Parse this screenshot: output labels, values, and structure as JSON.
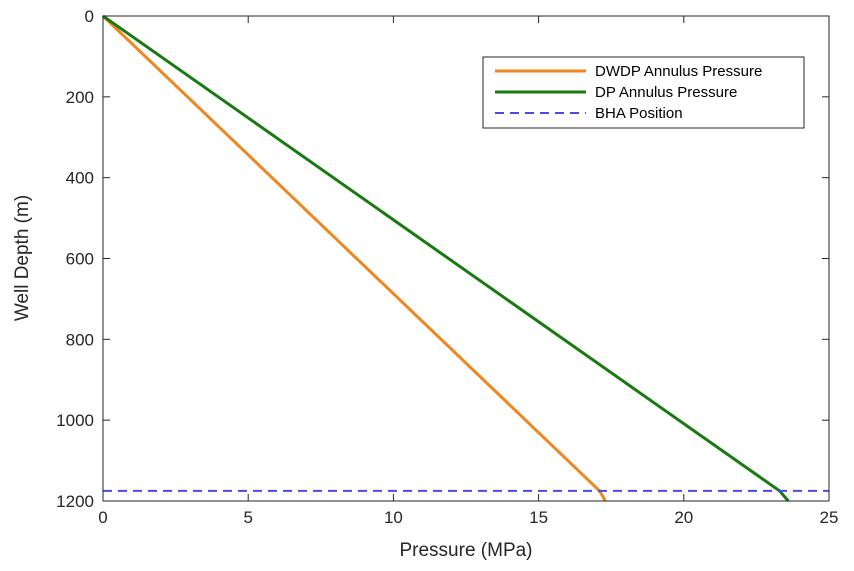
{
  "chart_data": {
    "type": "line",
    "xlabel": "Pressure (MPa)",
    "ylabel": "Well Depth (m)",
    "xlim": [
      0,
      25
    ],
    "ylim": [
      0,
      1200
    ],
    "y_reversed": true,
    "x_ticks": [
      "0",
      "5",
      "10",
      "15",
      "20",
      "25"
    ],
    "y_ticks": [
      "0",
      "200",
      "400",
      "600",
      "800",
      "1000",
      "1200"
    ],
    "grid": false,
    "legend_position": "top-right",
    "series": [
      {
        "name": "DWDP Annulus Pressure",
        "color": "#f0861d",
        "style": "solid",
        "points": [
          [
            0,
            0
          ],
          [
            17.1,
            1175
          ],
          [
            17.3,
            1200
          ]
        ]
      },
      {
        "name": "DP Annulus Pressure",
        "color": "#1a7a12",
        "style": "solid",
        "points": [
          [
            0,
            0
          ],
          [
            23.3,
            1175
          ],
          [
            23.6,
            1200
          ]
        ]
      },
      {
        "name": "BHA Position",
        "color": "#4a4ae8",
        "style": "dashed",
        "points": [
          [
            0,
            1175
          ],
          [
            25,
            1175
          ]
        ]
      }
    ]
  }
}
